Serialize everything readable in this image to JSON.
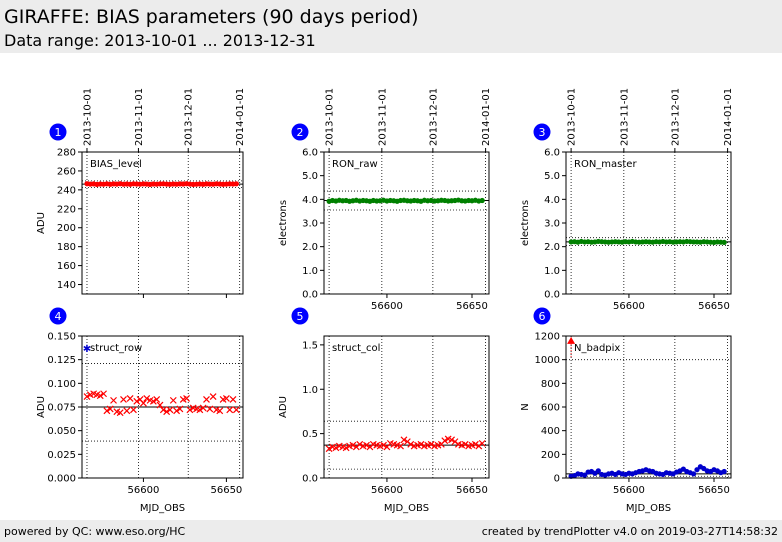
{
  "header": {
    "title": "GIRAFFE: BIAS parameters (90 days period)",
    "subtitle": "Data range: 2013-10-01 ... 2013-12-31"
  },
  "footer": {
    "left": "powered by QC: www.eso.org/HC",
    "right": "created by trendPlotter v4.0 on 2019-03-27T14:58:32"
  },
  "colors": {
    "red": "#ff0000",
    "green": "#008000",
    "blue": "#0000cc",
    "badge": "#0000ff"
  },
  "chart_data": [
    {
      "type": "scatter",
      "badge": "1",
      "label": "BIAS_level",
      "ylabel": "ADU",
      "xlabel": "",
      "xlim": [
        56563,
        56660
      ],
      "ylim": [
        130,
        280
      ],
      "yticks": [
        140,
        160,
        180,
        200,
        220,
        240,
        260,
        280
      ],
      "ytick_labels": [
        "140",
        "160",
        "180",
        "200",
        "220",
        "240",
        "260",
        "280"
      ],
      "xticks": [
        56600,
        56650
      ],
      "xtick_labels": [
        "56600",
        "56650"
      ],
      "show_xticklabels": false,
      "top_dates": [
        "2013-10-01",
        "2013-11-01",
        "2013-12-01",
        "2014-01-01"
      ],
      "top_date_mjd": [
        56566,
        56597,
        56627,
        56658
      ],
      "ref": 246,
      "ref_band": [
        242.5,
        249.5
      ],
      "series": [
        {
          "color": "red",
          "marker": "o",
          "x": [
            56566,
            56568,
            56570,
            56572,
            56574,
            56576,
            56578,
            56580,
            56582,
            56584,
            56586,
            56588,
            56590,
            56592,
            56594,
            56596,
            56598,
            56600,
            56602,
            56604,
            56606,
            56608,
            56610,
            56612,
            56614,
            56616,
            56618,
            56620,
            56622,
            56624,
            56626,
            56628,
            56630,
            56632,
            56634,
            56636,
            56638,
            56640,
            56642,
            56644,
            56646,
            56648,
            56650,
            56652,
            56654,
            56656
          ],
          "y": [
            246.5,
            246.1,
            246.3,
            245.8,
            246.2,
            246.0,
            246.4,
            245.9,
            246.3,
            246.1,
            246.5,
            246.0,
            246.2,
            245.9,
            246.4,
            246.2,
            246.0,
            246.3,
            246.1,
            245.8,
            246.2,
            246.0,
            246.3,
            246.4,
            246.1,
            245.9,
            246.2,
            246.0,
            246.3,
            246.2,
            246.5,
            246.1,
            245.8,
            246.0,
            246.2,
            245.9,
            246.3,
            246.1,
            246.0,
            246.4,
            246.2,
            245.9,
            246.1,
            246.3,
            246.2,
            246.4
          ]
        }
      ]
    },
    {
      "type": "scatter",
      "badge": "2",
      "label": "RON_raw",
      "ylabel": "electrons",
      "xlabel": "",
      "xlim": [
        56563,
        56660
      ],
      "ylim": [
        0,
        6
      ],
      "yticks": [
        0,
        1,
        2,
        3,
        4,
        5,
        6
      ],
      "ytick_labels": [
        "0.0",
        "1.0",
        "2.0",
        "3.0",
        "4.0",
        "5.0",
        "6.0"
      ],
      "xticks": [
        56600,
        56650
      ],
      "xtick_labels": [
        "56600",
        "56650"
      ],
      "show_xticklabels": true,
      "top_dates": [
        "2013-10-01",
        "2013-11-01",
        "2013-12-01",
        "2014-01-01"
      ],
      "top_date_mjd": [
        56566,
        56597,
        56627,
        56658
      ],
      "ref": 3.95,
      "ref_band": [
        3.55,
        4.35
      ],
      "series": [
        {
          "color": "green",
          "marker": "o",
          "x": [
            56566,
            56568,
            56570,
            56572,
            56574,
            56576,
            56578,
            56580,
            56582,
            56584,
            56586,
            56588,
            56590,
            56592,
            56594,
            56596,
            56598,
            56600,
            56602,
            56604,
            56606,
            56608,
            56610,
            56612,
            56614,
            56616,
            56618,
            56620,
            56622,
            56624,
            56626,
            56628,
            56630,
            56632,
            56634,
            56636,
            56638,
            56640,
            56642,
            56644,
            56646,
            56648,
            56650,
            56652,
            56654,
            56656
          ],
          "y": [
            3.92,
            3.95,
            3.93,
            3.96,
            3.94,
            3.95,
            3.92,
            3.94,
            3.96,
            3.93,
            3.95,
            3.94,
            3.92,
            3.95,
            3.93,
            3.94,
            3.96,
            3.93,
            3.95,
            3.94,
            3.92,
            3.95,
            3.96,
            3.94,
            3.93,
            3.95,
            3.94,
            3.92,
            3.96,
            3.94,
            3.95,
            3.93,
            3.94,
            3.96,
            3.95,
            3.93,
            3.94,
            3.95,
            3.97,
            3.94,
            3.93,
            3.95,
            3.94,
            3.96,
            3.93,
            3.95
          ]
        }
      ]
    },
    {
      "type": "scatter",
      "badge": "3",
      "label": "RON_master",
      "ylabel": "electrons",
      "xlabel": "",
      "xlim": [
        56563,
        56660
      ],
      "ylim": [
        0,
        6
      ],
      "yticks": [
        0,
        1,
        2,
        3,
        4,
        5,
        6
      ],
      "ytick_labels": [
        "0.0",
        "1.0",
        "2.0",
        "3.0",
        "4.0",
        "5.0",
        "6.0"
      ],
      "xticks": [
        56600,
        56650
      ],
      "xtick_labels": [
        "56600",
        "56650"
      ],
      "show_xticklabels": true,
      "top_dates": [
        "2013-10-01",
        "2013-11-01",
        "2013-12-01",
        "2014-01-01"
      ],
      "top_date_mjd": [
        56566,
        56597,
        56627,
        56658
      ],
      "ref": 2.2,
      "ref_band": [
        2.05,
        2.38
      ],
      "series": [
        {
          "color": "green",
          "marker": "o",
          "x": [
            56566,
            56568,
            56570,
            56572,
            56574,
            56576,
            56578,
            56580,
            56582,
            56584,
            56586,
            56588,
            56590,
            56592,
            56594,
            56596,
            56598,
            56600,
            56602,
            56604,
            56606,
            56608,
            56610,
            56612,
            56614,
            56616,
            56618,
            56620,
            56622,
            56624,
            56626,
            56628,
            56630,
            56632,
            56634,
            56636,
            56638,
            56640,
            56642,
            56644,
            56646,
            56648,
            56650,
            56652,
            56654,
            56656
          ],
          "y": [
            2.2,
            2.21,
            2.19,
            2.22,
            2.2,
            2.21,
            2.19,
            2.2,
            2.22,
            2.21,
            2.2,
            2.19,
            2.2,
            2.21,
            2.2,
            2.19,
            2.21,
            2.2,
            2.22,
            2.2,
            2.19,
            2.2,
            2.21,
            2.2,
            2.19,
            2.21,
            2.2,
            2.22,
            2.2,
            2.21,
            2.19,
            2.2,
            2.21,
            2.2,
            2.22,
            2.21,
            2.2,
            2.2,
            2.19,
            2.21,
            2.2,
            2.19,
            2.18,
            2.2,
            2.19,
            2.18
          ]
        }
      ]
    },
    {
      "type": "scatter",
      "badge": "4",
      "label": "struct_row",
      "ylabel": "ADU",
      "xlabel": "MJD_OBS",
      "xlim": [
        56563,
        56660
      ],
      "ylim": [
        0,
        0.15
      ],
      "yticks": [
        0,
        0.025,
        0.05,
        0.075,
        0.1,
        0.125,
        0.15
      ],
      "ytick_labels": [
        "0.000",
        "0.025",
        "0.050",
        "0.075",
        "0.100",
        "0.125",
        "0.150"
      ],
      "xticks": [
        56600,
        56650
      ],
      "xtick_labels": [
        "56600",
        "56650"
      ],
      "show_xticklabels": true,
      "top_dates": [],
      "top_date_mjd": [
        56566,
        56597,
        56627,
        56658
      ],
      "ref": 0.075,
      "ref_band": [
        0.039,
        0.121
      ],
      "series": [
        {
          "color": "red",
          "marker": "x",
          "x": [
            56566,
            56568,
            56570,
            56572,
            56574,
            56576,
            56578,
            56580,
            56582,
            56584,
            56586,
            56588,
            56590,
            56592,
            56594,
            56596,
            56598,
            56600,
            56602,
            56604,
            56606,
            56608,
            56610,
            56612,
            56614,
            56616,
            56618,
            56620,
            56622,
            56624,
            56626,
            56628,
            56630,
            56632,
            56634,
            56636,
            56638,
            56640,
            56642,
            56644,
            56646,
            56648,
            56650,
            56652,
            56654,
            56656
          ],
          "y": [
            0.086,
            0.088,
            0.089,
            0.088,
            0.087,
            0.089,
            0.071,
            0.073,
            0.082,
            0.07,
            0.069,
            0.083,
            0.071,
            0.084,
            0.072,
            0.081,
            0.083,
            0.079,
            0.084,
            0.082,
            0.081,
            0.083,
            0.077,
            0.072,
            0.07,
            0.072,
            0.082,
            0.071,
            0.073,
            0.083,
            0.084,
            0.072,
            0.074,
            0.073,
            0.072,
            0.074,
            0.083,
            0.073,
            0.086,
            0.072,
            0.071,
            0.083,
            0.084,
            0.072,
            0.083,
            0.072
          ]
        },
        {
          "color": "blue",
          "marker": "*",
          "x": [
            56566
          ],
          "y": [
            0.137
          ]
        }
      ]
    },
    {
      "type": "scatter",
      "badge": "5",
      "label": "struct_col",
      "ylabel": "ADU",
      "xlabel": "MJD_OBS",
      "xlim": [
        56563,
        56660
      ],
      "ylim": [
        0,
        1.6
      ],
      "yticks": [
        0,
        0.5,
        1,
        1.5
      ],
      "ytick_labels": [
        "0.0",
        "0.5",
        "1.0",
        "1.5"
      ],
      "xticks": [
        56600,
        56650
      ],
      "xtick_labels": [
        "56600",
        "56650"
      ],
      "show_xticklabels": true,
      "top_dates": [],
      "top_date_mjd": [
        56566,
        56597,
        56627,
        56658
      ],
      "ref": 0.37,
      "ref_band": [
        0.1,
        0.64
      ],
      "series": [
        {
          "color": "red",
          "marker": "x",
          "x": [
            56566,
            56568,
            56570,
            56572,
            56574,
            56576,
            56578,
            56580,
            56582,
            56584,
            56586,
            56588,
            56590,
            56592,
            56594,
            56596,
            56598,
            56600,
            56602,
            56604,
            56606,
            56608,
            56610,
            56612,
            56614,
            56616,
            56618,
            56620,
            56622,
            56624,
            56626,
            56628,
            56630,
            56632,
            56634,
            56636,
            56638,
            56640,
            56642,
            56644,
            56646,
            56648,
            56650,
            56652,
            56654,
            56656
          ],
          "y": [
            0.33,
            0.35,
            0.34,
            0.36,
            0.35,
            0.34,
            0.36,
            0.37,
            0.35,
            0.38,
            0.36,
            0.37,
            0.35,
            0.38,
            0.37,
            0.36,
            0.37,
            0.35,
            0.39,
            0.38,
            0.37,
            0.36,
            0.43,
            0.41,
            0.38,
            0.36,
            0.37,
            0.38,
            0.36,
            0.37,
            0.38,
            0.36,
            0.37,
            0.38,
            0.42,
            0.44,
            0.43,
            0.41,
            0.38,
            0.37,
            0.38,
            0.36,
            0.37,
            0.38,
            0.36,
            0.39
          ]
        }
      ]
    },
    {
      "type": "scatter",
      "badge": "6",
      "label": "N_badpix",
      "ylabel": "N",
      "xlabel": "MJD_OBS",
      "xlim": [
        56563,
        56660
      ],
      "ylim": [
        0,
        1200
      ],
      "yticks": [
        0,
        200,
        400,
        600,
        800,
        1000,
        1200
      ],
      "ytick_labels": [
        "0",
        "200",
        "400",
        "600",
        "800",
        "1000",
        "1200"
      ],
      "xticks": [
        56600,
        56650
      ],
      "xtick_labels": [
        "56600",
        "56650"
      ],
      "show_xticklabels": true,
      "top_dates": [],
      "top_date_mjd": [
        56566,
        56597,
        56627,
        56658
      ],
      "ref": 35,
      "ref_band": [
        15,
        1000
      ],
      "series": [
        {
          "color": "blue",
          "marker": "o",
          "x": [
            56566,
            56568,
            56570,
            56572,
            56574,
            56576,
            56578,
            56580,
            56582,
            56584,
            56586,
            56588,
            56590,
            56592,
            56594,
            56596,
            56598,
            56600,
            56602,
            56604,
            56606,
            56608,
            56610,
            56612,
            56614,
            56616,
            56618,
            56620,
            56622,
            56624,
            56626,
            56628,
            56630,
            56632,
            56634,
            56636,
            56638,
            56640,
            56642,
            56644,
            56646,
            56648,
            56650,
            56652,
            56654,
            56656
          ],
          "y": [
            15,
            20,
            35,
            30,
            25,
            50,
            55,
            40,
            60,
            30,
            25,
            35,
            40,
            30,
            45,
            35,
            30,
            40,
            35,
            45,
            55,
            60,
            70,
            60,
            55,
            40,
            35,
            30,
            45,
            40,
            35,
            50,
            60,
            75,
            55,
            45,
            35,
            70,
            95,
            80,
            60,
            55,
            70,
            60,
            45,
            55
          ]
        },
        {
          "color": "red",
          "marker": "^",
          "x": [
            56566
          ],
          "y": [
            1150
          ]
        }
      ]
    }
  ]
}
